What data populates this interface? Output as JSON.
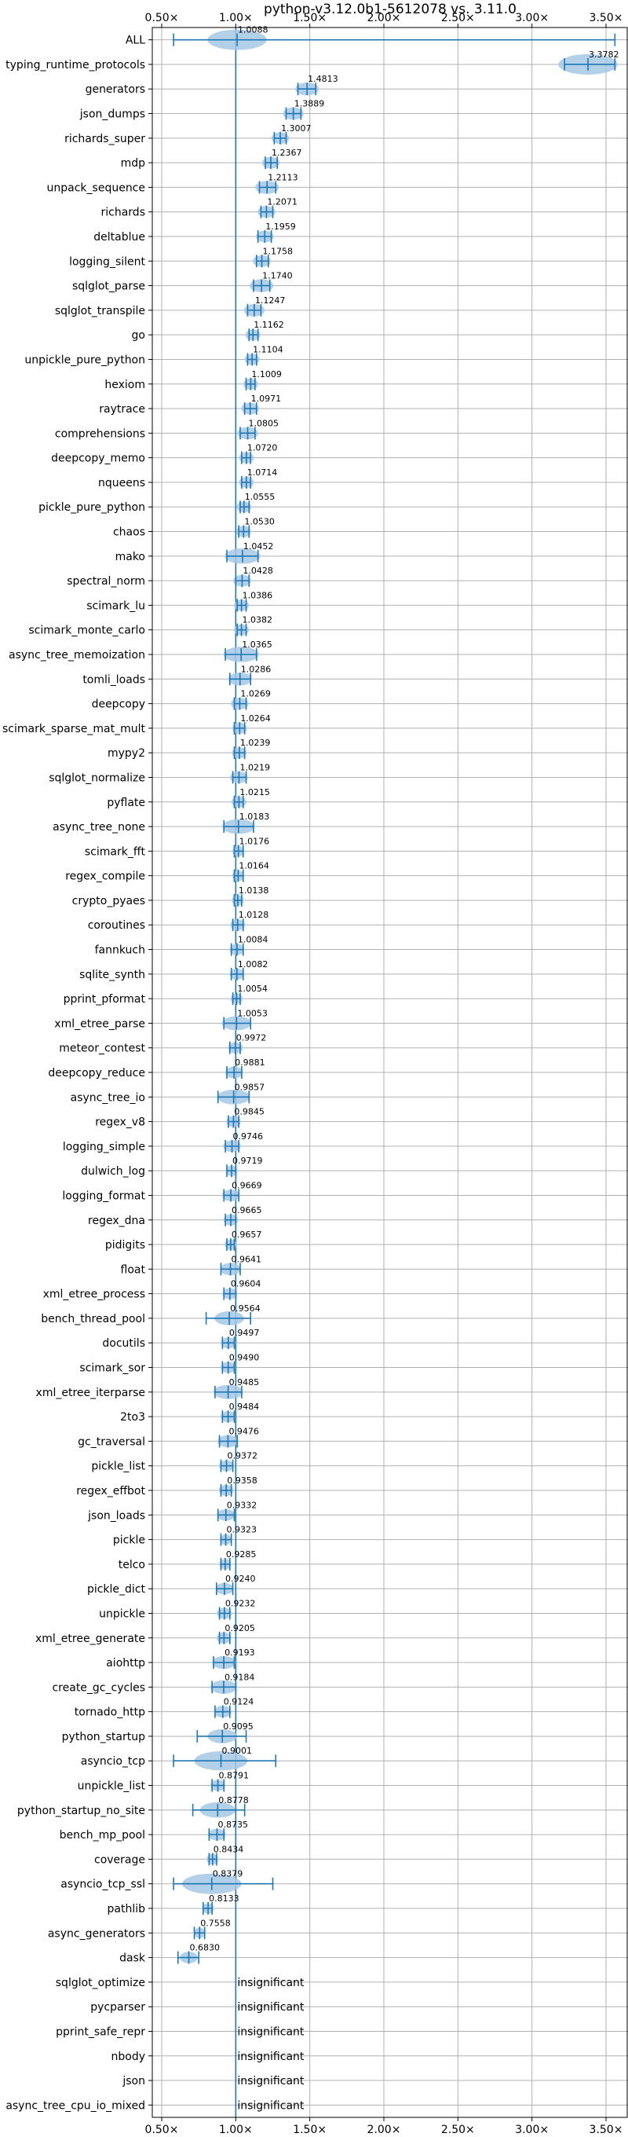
{
  "chart_data": {
    "type": "violin",
    "title": "python-v3.12.0b1-5612078 vs. 3.11.0",
    "x_ticks": [
      "0.50×",
      "1.00×",
      "1.50×",
      "2.00×",
      "2.50×",
      "3.00×",
      "3.50×"
    ],
    "x_tick_values": [
      0.5,
      1.0,
      1.5,
      2.0,
      2.5,
      3.0,
      3.5
    ],
    "xlim": [
      0.45,
      3.62
    ],
    "grid": true,
    "colors": {
      "violin": "#a6c8e5",
      "whisker": "#1f77b4",
      "reference_line": "#1f77b4",
      "grid": "#b0b0b0"
    },
    "insignificant_label": "insignificant",
    "rows": [
      {
        "name": "ALL",
        "ratio": 1.0088,
        "label": "1.0088",
        "min": 0.58,
        "max": 3.56,
        "spread": 0.2
      },
      {
        "name": "typing_runtime_protocols",
        "ratio": 3.3782,
        "label": "3.3782",
        "min": 3.22,
        "max": 3.56,
        "spread": 0.2
      },
      {
        "name": "generators",
        "ratio": 1.4813,
        "label": "1.4813",
        "min": 1.42,
        "max": 1.54,
        "spread": 0.08
      },
      {
        "name": "json_dumps",
        "ratio": 1.3889,
        "label": "1.3889",
        "min": 1.34,
        "max": 1.44,
        "spread": 0.07
      },
      {
        "name": "richards_super",
        "ratio": 1.3007,
        "label": "1.3007",
        "min": 1.26,
        "max": 1.34,
        "spread": 0.06
      },
      {
        "name": "mdp",
        "ratio": 1.2367,
        "label": "1.2367",
        "min": 1.2,
        "max": 1.28,
        "spread": 0.06
      },
      {
        "name": "unpack_sequence",
        "ratio": 1.2113,
        "label": "1.2113",
        "min": 1.16,
        "max": 1.27,
        "spread": 0.08
      },
      {
        "name": "richards",
        "ratio": 1.2071,
        "label": "1.2071",
        "min": 1.17,
        "max": 1.25,
        "spread": 0.06
      },
      {
        "name": "deltablue",
        "ratio": 1.1959,
        "label": "1.1959",
        "min": 1.15,
        "max": 1.24,
        "spread": 0.06
      },
      {
        "name": "logging_silent",
        "ratio": 1.1758,
        "label": "1.1758",
        "min": 1.14,
        "max": 1.22,
        "spread": 0.06
      },
      {
        "name": "sqlglot_parse",
        "ratio": 1.174,
        "label": "1.1740",
        "min": 1.12,
        "max": 1.23,
        "spread": 0.08
      },
      {
        "name": "sqlglot_transpile",
        "ratio": 1.1247,
        "label": "1.1247",
        "min": 1.08,
        "max": 1.17,
        "spread": 0.07
      },
      {
        "name": "go",
        "ratio": 1.1162,
        "label": "1.1162",
        "min": 1.09,
        "max": 1.15,
        "spread": 0.05
      },
      {
        "name": "unpickle_pure_python",
        "ratio": 1.1104,
        "label": "1.1104",
        "min": 1.08,
        "max": 1.14,
        "spread": 0.05
      },
      {
        "name": "hexiom",
        "ratio": 1.1009,
        "label": "1.1009",
        "min": 1.07,
        "max": 1.13,
        "spread": 0.05
      },
      {
        "name": "raytrace",
        "ratio": 1.0971,
        "label": "1.0971",
        "min": 1.06,
        "max": 1.14,
        "spread": 0.06
      },
      {
        "name": "comprehensions",
        "ratio": 1.0805,
        "label": "1.0805",
        "min": 1.03,
        "max": 1.13,
        "spread": 0.07
      },
      {
        "name": "deepcopy_memo",
        "ratio": 1.072,
        "label": "1.0720",
        "min": 1.04,
        "max": 1.1,
        "spread": 0.05
      },
      {
        "name": "nqueens",
        "ratio": 1.0714,
        "label": "1.0714",
        "min": 1.04,
        "max": 1.1,
        "spread": 0.05
      },
      {
        "name": "pickle_pure_python",
        "ratio": 1.0555,
        "label": "1.0555",
        "min": 1.03,
        "max": 1.09,
        "spread": 0.05
      },
      {
        "name": "chaos",
        "ratio": 1.053,
        "label": "1.0530",
        "min": 1.02,
        "max": 1.09,
        "spread": 0.05
      },
      {
        "name": "mako",
        "ratio": 1.0452,
        "label": "1.0452",
        "min": 0.94,
        "max": 1.15,
        "spread": 0.12
      },
      {
        "name": "spectral_norm",
        "ratio": 1.0428,
        "label": "1.0428",
        "min": 1.0,
        "max": 1.09,
        "spread": 0.06
      },
      {
        "name": "scimark_lu",
        "ratio": 1.0386,
        "label": "1.0386",
        "min": 1.01,
        "max": 1.07,
        "spread": 0.05
      },
      {
        "name": "scimark_monte_carlo",
        "ratio": 1.0382,
        "label": "1.0382",
        "min": 1.01,
        "max": 1.07,
        "spread": 0.05
      },
      {
        "name": "async_tree_memoization",
        "ratio": 1.0365,
        "label": "1.0365",
        "min": 0.93,
        "max": 1.14,
        "spread": 0.12
      },
      {
        "name": "tomli_loads",
        "ratio": 1.0286,
        "label": "1.0286",
        "min": 0.96,
        "max": 1.1,
        "spread": 0.08
      },
      {
        "name": "deepcopy",
        "ratio": 1.0269,
        "label": "1.0269",
        "min": 0.99,
        "max": 1.07,
        "spread": 0.06
      },
      {
        "name": "scimark_sparse_mat_mult",
        "ratio": 1.0264,
        "label": "1.0264",
        "min": 0.99,
        "max": 1.06,
        "spread": 0.05
      },
      {
        "name": "mypy2",
        "ratio": 1.0239,
        "label": "1.0239",
        "min": 0.99,
        "max": 1.06,
        "spread": 0.05
      },
      {
        "name": "sqlglot_normalize",
        "ratio": 1.0219,
        "label": "1.0219",
        "min": 0.98,
        "max": 1.07,
        "spread": 0.06
      },
      {
        "name": "pyflate",
        "ratio": 1.0215,
        "label": "1.0215",
        "min": 0.99,
        "max": 1.05,
        "spread": 0.05
      },
      {
        "name": "async_tree_none",
        "ratio": 1.0183,
        "label": "1.0183",
        "min": 0.92,
        "max": 1.12,
        "spread": 0.11
      },
      {
        "name": "scimark_fft",
        "ratio": 1.0176,
        "label": "1.0176",
        "min": 0.99,
        "max": 1.05,
        "spread": 0.04
      },
      {
        "name": "regex_compile",
        "ratio": 1.0164,
        "label": "1.0164",
        "min": 0.99,
        "max": 1.05,
        "spread": 0.04
      },
      {
        "name": "crypto_pyaes",
        "ratio": 1.0138,
        "label": "1.0138",
        "min": 0.99,
        "max": 1.04,
        "spread": 0.04
      },
      {
        "name": "coroutines",
        "ratio": 1.0128,
        "label": "1.0128",
        "min": 0.98,
        "max": 1.05,
        "spread": 0.05
      },
      {
        "name": "fannkuch",
        "ratio": 1.0084,
        "label": "1.0084",
        "min": 0.97,
        "max": 1.05,
        "spread": 0.05
      },
      {
        "name": "sqlite_synth",
        "ratio": 1.0082,
        "label": "1.0082",
        "min": 0.97,
        "max": 1.05,
        "spread": 0.05
      },
      {
        "name": "pprint_pformat",
        "ratio": 1.0054,
        "label": "1.0054",
        "min": 0.98,
        "max": 1.03,
        "spread": 0.04
      },
      {
        "name": "xml_etree_parse",
        "ratio": 1.0053,
        "label": "1.0053",
        "min": 0.92,
        "max": 1.1,
        "spread": 0.1
      },
      {
        "name": "meteor_contest",
        "ratio": 0.9972,
        "label": "0.9972",
        "min": 0.96,
        "max": 1.03,
        "spread": 0.05
      },
      {
        "name": "deepcopy_reduce",
        "ratio": 0.9881,
        "label": "0.9881",
        "min": 0.94,
        "max": 1.04,
        "spread": 0.06
      },
      {
        "name": "async_tree_io",
        "ratio": 0.9857,
        "label": "0.9857",
        "min": 0.88,
        "max": 1.09,
        "spread": 0.11
      },
      {
        "name": "regex_v8",
        "ratio": 0.9845,
        "label": "0.9845",
        "min": 0.95,
        "max": 1.02,
        "spread": 0.05
      },
      {
        "name": "logging_simple",
        "ratio": 0.9746,
        "label": "0.9746",
        "min": 0.93,
        "max": 1.02,
        "spread": 0.06
      },
      {
        "name": "dulwich_log",
        "ratio": 0.9719,
        "label": "0.9719",
        "min": 0.94,
        "max": 1.0,
        "spread": 0.04
      },
      {
        "name": "logging_format",
        "ratio": 0.9669,
        "label": "0.9669",
        "min": 0.92,
        "max": 1.02,
        "spread": 0.06
      },
      {
        "name": "regex_dna",
        "ratio": 0.9665,
        "label": "0.9665",
        "min": 0.93,
        "max": 1.0,
        "spread": 0.05
      },
      {
        "name": "pidigits",
        "ratio": 0.9657,
        "label": "0.9657",
        "min": 0.94,
        "max": 0.99,
        "spread": 0.04
      },
      {
        "name": "float",
        "ratio": 0.9641,
        "label": "0.9641",
        "min": 0.9,
        "max": 1.03,
        "spread": 0.07
      },
      {
        "name": "xml_etree_process",
        "ratio": 0.9604,
        "label": "0.9604",
        "min": 0.92,
        "max": 1.0,
        "spread": 0.05
      },
      {
        "name": "bench_thread_pool",
        "ratio": 0.9564,
        "label": "0.9564",
        "min": 0.8,
        "max": 1.1,
        "spread": 0.1
      },
      {
        "name": "docutils",
        "ratio": 0.9497,
        "label": "0.9497",
        "min": 0.91,
        "max": 0.99,
        "spread": 0.05
      },
      {
        "name": "scimark_sor",
        "ratio": 0.949,
        "label": "0.9490",
        "min": 0.91,
        "max": 0.99,
        "spread": 0.05
      },
      {
        "name": "xml_etree_iterparse",
        "ratio": 0.9485,
        "label": "0.9485",
        "min": 0.86,
        "max": 1.04,
        "spread": 0.1
      },
      {
        "name": "2to3",
        "ratio": 0.9484,
        "label": "0.9484",
        "min": 0.91,
        "max": 0.99,
        "spread": 0.05
      },
      {
        "name": "gc_traversal",
        "ratio": 0.9476,
        "label": "0.9476",
        "min": 0.89,
        "max": 1.01,
        "spread": 0.07
      },
      {
        "name": "pickle_list",
        "ratio": 0.9372,
        "label": "0.9372",
        "min": 0.9,
        "max": 0.98,
        "spread": 0.05
      },
      {
        "name": "regex_effbot",
        "ratio": 0.9358,
        "label": "0.9358",
        "min": 0.9,
        "max": 0.97,
        "spread": 0.05
      },
      {
        "name": "json_loads",
        "ratio": 0.9332,
        "label": "0.9332",
        "min": 0.88,
        "max": 0.99,
        "spread": 0.06
      },
      {
        "name": "pickle",
        "ratio": 0.9323,
        "label": "0.9323",
        "min": 0.9,
        "max": 0.97,
        "spread": 0.04
      },
      {
        "name": "telco",
        "ratio": 0.9285,
        "label": "0.9285",
        "min": 0.9,
        "max": 0.96,
        "spread": 0.04
      },
      {
        "name": "pickle_dict",
        "ratio": 0.924,
        "label": "0.9240",
        "min": 0.87,
        "max": 0.98,
        "spread": 0.06
      },
      {
        "name": "unpickle",
        "ratio": 0.9232,
        "label": "0.9232",
        "min": 0.89,
        "max": 0.96,
        "spread": 0.05
      },
      {
        "name": "xml_etree_generate",
        "ratio": 0.9205,
        "label": "0.9205",
        "min": 0.89,
        "max": 0.96,
        "spread": 0.05
      },
      {
        "name": "aiohttp",
        "ratio": 0.9193,
        "label": "0.9193",
        "min": 0.85,
        "max": 0.99,
        "spread": 0.08
      },
      {
        "name": "create_gc_cycles",
        "ratio": 0.9184,
        "label": "0.9184",
        "min": 0.84,
        "max": 1.0,
        "spread": 0.09
      },
      {
        "name": "tornado_http",
        "ratio": 0.9124,
        "label": "0.9124",
        "min": 0.86,
        "max": 0.96,
        "spread": 0.06
      },
      {
        "name": "python_startup",
        "ratio": 0.9095,
        "label": "0.9095",
        "min": 0.74,
        "max": 1.07,
        "spread": 0.1
      },
      {
        "name": "asyncio_tcp",
        "ratio": 0.9001,
        "label": "0.9001",
        "min": 0.58,
        "max": 1.27,
        "spread": 0.18
      },
      {
        "name": "unpickle_list",
        "ratio": 0.8791,
        "label": "0.8791",
        "min": 0.84,
        "max": 0.92,
        "spread": 0.05
      },
      {
        "name": "python_startup_no_site",
        "ratio": 0.8778,
        "label": "0.8778",
        "min": 0.71,
        "max": 1.06,
        "spread": 0.12
      },
      {
        "name": "bench_mp_pool",
        "ratio": 0.8735,
        "label": "0.8735",
        "min": 0.82,
        "max": 0.92,
        "spread": 0.06
      },
      {
        "name": "coverage",
        "ratio": 0.8434,
        "label": "0.8434",
        "min": 0.82,
        "max": 0.87,
        "spread": 0.04
      },
      {
        "name": "asyncio_tcp_ssl",
        "ratio": 0.8379,
        "label": "0.8379",
        "min": 0.58,
        "max": 1.25,
        "spread": 0.2
      },
      {
        "name": "pathlib",
        "ratio": 0.8133,
        "label": "0.8133",
        "min": 0.78,
        "max": 0.84,
        "spread": 0.04
      },
      {
        "name": "async_generators",
        "ratio": 0.7558,
        "label": "0.7558",
        "min": 0.72,
        "max": 0.79,
        "spread": 0.04
      },
      {
        "name": "dask",
        "ratio": 0.683,
        "label": "0.6830",
        "min": 0.61,
        "max": 0.75,
        "spread": 0.06
      },
      {
        "name": "sqlglot_optimize",
        "insignificant": true
      },
      {
        "name": "pycparser",
        "insignificant": true
      },
      {
        "name": "pprint_safe_repr",
        "insignificant": true
      },
      {
        "name": "nbody",
        "insignificant": true
      },
      {
        "name": "json",
        "insignificant": true
      },
      {
        "name": "async_tree_cpu_io_mixed",
        "insignificant": true
      }
    ]
  }
}
